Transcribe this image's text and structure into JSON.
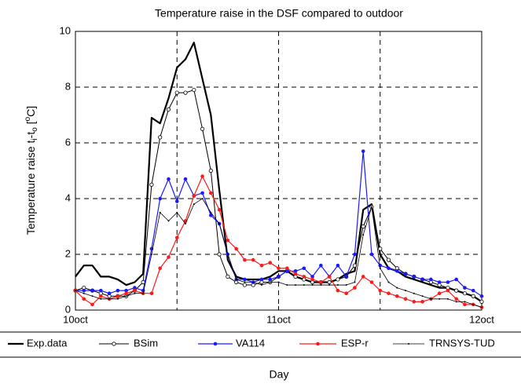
{
  "chart_data": {
    "type": "line",
    "title": "Temperature raise in the DSF compared to outdoor",
    "ylabel": [
      "Temperature raise t",
      "i",
      "-t",
      "o",
      " [",
      "o",
      "C]"
    ],
    "xlabel": "Day",
    "x": [
      0,
      1,
      2,
      3,
      4,
      5,
      6,
      7,
      8,
      9,
      10,
      11,
      12,
      13,
      14,
      15,
      16,
      17,
      18,
      19,
      20,
      21,
      22,
      23,
      24,
      25,
      26,
      27,
      28,
      29,
      30,
      31,
      32,
      33,
      34,
      35,
      36,
      37,
      38,
      39,
      40,
      41,
      42,
      43,
      44,
      45,
      46,
      47,
      48
    ],
    "xlim": [
      0,
      48
    ],
    "xticks": [
      {
        "value": 0,
        "label": "10oct"
      },
      {
        "value": 24,
        "label": "11oct"
      },
      {
        "value": 48,
        "label": "12oct"
      }
    ],
    "xgrid_extra": [
      12,
      36
    ],
    "ylim": [
      0,
      10
    ],
    "yticks": [
      0,
      2,
      4,
      6,
      8,
      10
    ],
    "grid": true,
    "legend": "bottom",
    "series": [
      {
        "name": "Exp.data",
        "color": "#000000",
        "width": 2.2,
        "marker": "none",
        "values": [
          1.2,
          1.6,
          1.6,
          1.2,
          1.2,
          1.1,
          0.9,
          1.0,
          1.3,
          6.9,
          6.7,
          7.6,
          8.7,
          9.0,
          9.6,
          8.3,
          7.0,
          4.3,
          1.8,
          1.2,
          1.1,
          1.1,
          1.1,
          1.2,
          1.4,
          1.4,
          1.2,
          1.1,
          1.0,
          1.0,
          1.0,
          1.1,
          1.3,
          1.4,
          3.6,
          3.8,
          2.0,
          1.5,
          1.4,
          1.2,
          1.1,
          1.0,
          0.9,
          0.8,
          0.8,
          0.7,
          0.6,
          0.5,
          0.3
        ]
      },
      {
        "name": "BSim",
        "color": "#000000",
        "width": 1,
        "marker": "circle-open",
        "values": [
          0.7,
          0.8,
          0.7,
          0.6,
          0.5,
          0.5,
          0.5,
          0.7,
          1.0,
          4.5,
          6.2,
          7.2,
          7.8,
          7.8,
          7.9,
          6.5,
          5.0,
          2.0,
          1.2,
          1.0,
          0.9,
          0.9,
          1.0,
          1.0,
          1.2,
          1.4,
          1.2,
          1.1,
          1.0,
          1.0,
          1.0,
          1.1,
          1.2,
          1.6,
          3.0,
          3.7,
          2.2,
          1.8,
          1.5,
          1.3,
          1.2,
          1.1,
          1.0,
          0.9,
          0.8,
          0.7,
          0.6,
          0.5,
          0.3
        ]
      },
      {
        "name": "VA114",
        "color": "#1a1aff",
        "width": 1.2,
        "marker": "dot",
        "values": [
          0.7,
          0.7,
          0.7,
          0.7,
          0.6,
          0.7,
          0.7,
          0.8,
          0.7,
          2.2,
          4.0,
          4.7,
          3.9,
          4.7,
          4.1,
          4.2,
          3.4,
          3.1,
          2.0,
          1.1,
          1.1,
          1.0,
          1.1,
          1.1,
          1.2,
          1.4,
          1.4,
          1.5,
          1.2,
          1.6,
          1.2,
          1.6,
          1.2,
          2.0,
          5.7,
          2.0,
          1.6,
          1.5,
          1.4,
          1.3,
          1.2,
          1.1,
          1.1,
          1.0,
          1.0,
          1.1,
          0.8,
          0.7,
          0.5
        ]
      },
      {
        "name": "ESP-r",
        "color": "#ff1a1a",
        "width": 1.2,
        "marker": "dot",
        "values": [
          0.7,
          0.4,
          0.2,
          0.5,
          0.4,
          0.5,
          0.6,
          0.7,
          0.6,
          0.6,
          1.5,
          1.9,
          2.6,
          3.2,
          4.1,
          4.8,
          4.2,
          3.6,
          2.5,
          2.2,
          1.8,
          1.8,
          1.6,
          1.7,
          1.5,
          1.5,
          1.3,
          1.2,
          1.1,
          1.0,
          1.2,
          0.7,
          0.6,
          0.8,
          1.2,
          1.0,
          0.7,
          0.6,
          0.5,
          0.4,
          0.3,
          0.3,
          0.4,
          0.6,
          0.7,
          0.4,
          0.2,
          0.2,
          0.1
        ]
      },
      {
        "name": "TRNSYS-TUD",
        "color": "#000000",
        "width": 0.8,
        "marker": "point",
        "values": [
          0.7,
          0.6,
          0.5,
          0.4,
          0.4,
          0.4,
          0.5,
          0.6,
          0.6,
          2.0,
          3.5,
          3.2,
          3.5,
          3.1,
          3.8,
          4.0,
          3.5,
          3.1,
          2.0,
          1.1,
          1.0,
          1.0,
          0.9,
          1.0,
          1.0,
          0.9,
          0.9,
          0.9,
          0.9,
          0.9,
          0.9,
          0.9,
          0.9,
          1.0,
          2.7,
          3.7,
          1.5,
          1.0,
          0.8,
          0.7,
          0.6,
          0.5,
          0.4,
          0.4,
          0.4,
          0.3,
          0.3,
          0.2,
          0.1
        ]
      }
    ]
  }
}
